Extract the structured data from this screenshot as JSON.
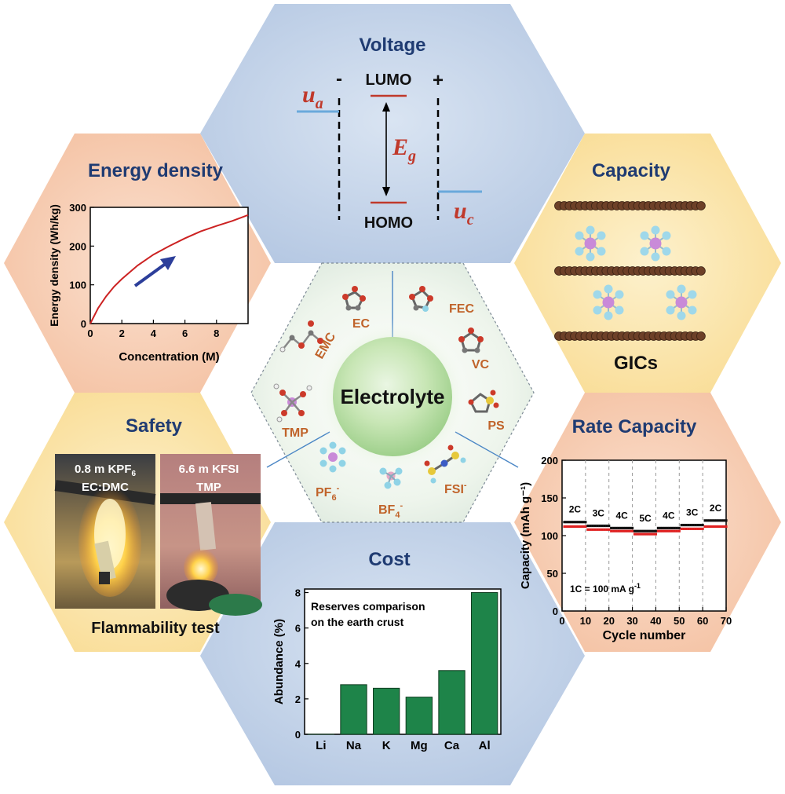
{
  "center": {
    "label": "Electrolyte"
  },
  "molecules": {
    "ec": "EC",
    "fec": "FEC",
    "vc": "VC",
    "ps": "PS",
    "fsi": "FSI",
    "fsi_sup": "-",
    "bf4_base": "BF",
    "bf4_sub": "4",
    "bf4_sup": "-",
    "pf6_base": "PF",
    "pf6_sub": "6",
    "pf6_sup": "-",
    "tmp": "TMP",
    "emc": "EMC"
  },
  "voltage": {
    "title": "Voltage",
    "minus": "-",
    "plus": "+",
    "lumo": "LUMO",
    "homo": "HOMO",
    "ua": "u",
    "ua_sub": "a",
    "uc": "u",
    "uc_sub": "c",
    "eg": "E",
    "eg_sub": "g"
  },
  "energy": {
    "title": "Energy density"
  },
  "capacity": {
    "title": "Capacity",
    "caption": "GICs"
  },
  "safety": {
    "title": "Safety",
    "photo1_line1": "0.8 m KPF",
    "photo1_line1_sub": "6",
    "photo1_line2": "EC:DMC",
    "photo2_line1": "6.6 m KFSI",
    "photo2_line2": "TMP",
    "caption": "Flammability test"
  },
  "rate": {
    "title": "Rate Capacity"
  },
  "cost": {
    "title": "Cost"
  },
  "colors": {
    "blue_hex": "#c4d3e8",
    "peach_hex": "#f6cbb1",
    "yellow_hex": "#fbe4a6",
    "title_blue": "#1f3b72",
    "red_curve": "#cc2222",
    "arrow_blue": "#2c3e9a",
    "bar_green": "#1e8449",
    "electrode_blue": "#6aa9db",
    "level_red": "#c0392b"
  },
  "chart_data": [
    {
      "type": "line",
      "name": "energy-density",
      "xlabel": "Concentration (M)",
      "ylabel": "Energy density (Wh/kg)",
      "xlim": [
        0,
        10
      ],
      "ylim": [
        0,
        300
      ],
      "xticks": [
        0,
        2,
        4,
        6,
        8
      ],
      "yticks": [
        0,
        100,
        200,
        300
      ],
      "x": [
        0,
        0.5,
        1,
        1.5,
        2,
        3,
        4,
        5,
        6,
        7,
        8,
        9,
        10
      ],
      "y": [
        0,
        40,
        70,
        95,
        115,
        150,
        178,
        200,
        220,
        238,
        252,
        265,
        280
      ]
    },
    {
      "type": "scatter",
      "name": "rate-capacity",
      "xlabel": "Cycle number",
      "ylabel": "Capacity (mAh g⁻¹)",
      "xlim": [
        0,
        70
      ],
      "ylim": [
        0,
        200
      ],
      "xticks": [
        0,
        10,
        20,
        30,
        40,
        50,
        60,
        70
      ],
      "yticks": [
        0,
        50,
        100,
        150,
        200
      ],
      "annotation": "1C = 100 mA g",
      "annotation_sup": "-1",
      "segments": [
        {
          "label": "2C",
          "start": 1,
          "end": 10,
          "black": 118,
          "red": 112
        },
        {
          "label": "3C",
          "start": 11,
          "end": 20,
          "black": 113,
          "red": 108
        },
        {
          "label": "4C",
          "start": 21,
          "end": 30,
          "black": 110,
          "red": 106
        },
        {
          "label": "5C",
          "start": 31,
          "end": 40,
          "black": 106,
          "red": 102
        },
        {
          "label": "4C",
          "start": 41,
          "end": 50,
          "black": 110,
          "red": 106
        },
        {
          "label": "3C",
          "start": 51,
          "end": 60,
          "black": 114,
          "red": 109
        },
        {
          "label": "2C",
          "start": 61,
          "end": 70,
          "black": 120,
          "red": 112
        }
      ]
    },
    {
      "type": "bar",
      "name": "cost-abundance",
      "title": "Reserves comparison on the earth crust",
      "title_lines": [
        "Reserves comparison",
        "on the earth crust"
      ],
      "ylabel": "Abundance (%)",
      "ylim": [
        0,
        8.2
      ],
      "yticks": [
        0,
        2,
        4,
        6,
        8
      ],
      "categories": [
        "Li",
        "Na",
        "K",
        "Mg",
        "Ca",
        "Al"
      ],
      "values": [
        0.002,
        2.8,
        2.6,
        2.1,
        3.6,
        8.0
      ]
    }
  ]
}
